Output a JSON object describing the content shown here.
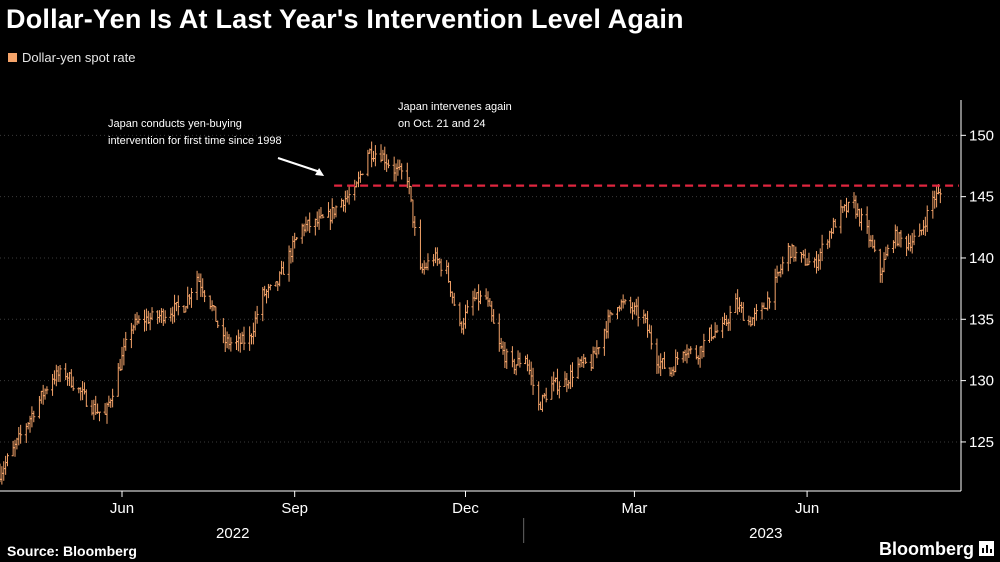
{
  "title": "Dollar-Yen Is At Last Year's Intervention Level Again",
  "legend": {
    "label": "Dollar-yen spot rate",
    "color": "#f5a46a"
  },
  "source": "Source: Bloomberg",
  "brand": "Bloomberg",
  "colors": {
    "background": "#000000",
    "series": "#f5a46a",
    "reference": "#e0263f",
    "axis": "#ffffff"
  },
  "chart_data": {
    "type": "ohlc",
    "title": "Dollar-Yen Is At Last Year's Intervention Level Again",
    "series_name": "Dollar-yen spot rate",
    "x_axis": {
      "range": [
        "2022-03-28",
        "2023-08-22"
      ],
      "month_labels": [
        {
          "date": "2022-06-01",
          "label": "Jun"
        },
        {
          "date": "2022-09-01",
          "label": "Sep"
        },
        {
          "date": "2022-12-01",
          "label": "Dec"
        },
        {
          "date": "2023-03-01",
          "label": "Mar"
        },
        {
          "date": "2023-06-01",
          "label": "Jun"
        }
      ],
      "year_labels": [
        {
          "date": "2022-07-30",
          "label": "2022"
        },
        {
          "date": "2023-05-10",
          "label": "2023"
        }
      ],
      "year_divider": "2023-01-01"
    },
    "y_axis": {
      "min": 121,
      "max": 155,
      "ticks": [
        125,
        130,
        135,
        140,
        145,
        150
      ],
      "position": "right"
    },
    "reference_line": {
      "value": 145.9,
      "from": "2022-09-22",
      "to": "2023-08-22",
      "style": "dashed"
    },
    "annotations": [
      {
        "lines": [
          "Japan conducts yen-buying",
          "intervention for first time since 1998"
        ],
        "date": "2022-09-22",
        "arrow": true
      },
      {
        "lines": [
          "Japan intervenes again",
          "on Oct. 21 and 24"
        ],
        "date": "2022-10-21"
      }
    ],
    "weekly_close": [
      [
        "2022-03-28",
        122.5
      ],
      [
        "2022-04-04",
        124.3
      ],
      [
        "2022-04-11",
        126.4
      ],
      [
        "2022-04-18",
        128.4
      ],
      [
        "2022-04-25",
        130.3
      ],
      [
        "2022-05-02",
        130.6
      ],
      [
        "2022-05-09",
        129.2
      ],
      [
        "2022-05-16",
        127.9
      ],
      [
        "2022-05-23",
        127.1
      ],
      [
        "2022-05-30",
        130.8
      ],
      [
        "2022-06-06",
        134.4
      ],
      [
        "2022-06-13",
        135.0
      ],
      [
        "2022-06-20",
        135.2
      ],
      [
        "2022-06-27",
        135.7
      ],
      [
        "2022-07-04",
        136.1
      ],
      [
        "2022-07-11",
        138.5
      ],
      [
        "2022-07-18",
        136.4
      ],
      [
        "2022-07-25",
        133.2
      ],
      [
        "2022-08-01",
        133.0
      ],
      [
        "2022-08-08",
        133.4
      ],
      [
        "2022-08-15",
        137.0
      ],
      [
        "2022-08-22",
        137.6
      ],
      [
        "2022-08-29",
        140.2
      ],
      [
        "2022-09-05",
        142.5
      ],
      [
        "2022-09-12",
        142.8
      ],
      [
        "2022-09-19",
        143.3
      ],
      [
        "2022-09-26",
        144.7
      ],
      [
        "2022-10-03",
        145.3
      ],
      [
        "2022-10-10",
        148.7
      ],
      [
        "2022-10-17",
        148.5
      ],
      [
        "2022-10-24",
        147.2
      ],
      [
        "2022-10-31",
        146.6
      ],
      [
        "2022-11-07",
        138.8
      ],
      [
        "2022-11-14",
        140.1
      ],
      [
        "2022-11-21",
        138.9
      ],
      [
        "2022-11-28",
        134.3
      ],
      [
        "2022-12-05",
        136.6
      ],
      [
        "2022-12-12",
        136.7
      ],
      [
        "2022-12-19",
        132.8
      ],
      [
        "2022-12-26",
        131.1
      ],
      [
        "2023-01-02",
        132.0
      ],
      [
        "2023-01-09",
        127.9
      ],
      [
        "2023-01-16",
        129.6
      ],
      [
        "2023-01-23",
        129.9
      ],
      [
        "2023-01-30",
        131.2
      ],
      [
        "2023-02-06",
        131.4
      ],
      [
        "2023-02-13",
        134.2
      ],
      [
        "2023-02-20",
        136.4
      ],
      [
        "2023-02-27",
        135.9
      ],
      [
        "2023-03-06",
        135.1
      ],
      [
        "2023-03-13",
        131.8
      ],
      [
        "2023-03-20",
        130.7
      ],
      [
        "2023-03-27",
        132.7
      ],
      [
        "2023-04-03",
        132.1
      ],
      [
        "2023-04-10",
        133.8
      ],
      [
        "2023-04-17",
        134.2
      ],
      [
        "2023-04-24",
        136.3
      ],
      [
        "2023-05-01",
        134.8
      ],
      [
        "2023-05-08",
        135.7
      ],
      [
        "2023-05-15",
        137.9
      ],
      [
        "2023-05-22",
        140.7
      ],
      [
        "2023-05-29",
        139.9
      ],
      [
        "2023-06-05",
        139.4
      ],
      [
        "2023-06-12",
        141.8
      ],
      [
        "2023-06-19",
        143.7
      ],
      [
        "2023-06-26",
        144.3
      ],
      [
        "2023-07-03",
        142.1
      ],
      [
        "2023-07-10",
        138.8
      ],
      [
        "2023-07-17",
        141.8
      ],
      [
        "2023-07-24",
        141.2
      ],
      [
        "2023-07-31",
        141.8
      ],
      [
        "2023-08-07",
        144.9
      ],
      [
        "2023-08-14",
        145.4
      ],
      [
        "2023-08-21",
        146.0
      ]
    ]
  }
}
